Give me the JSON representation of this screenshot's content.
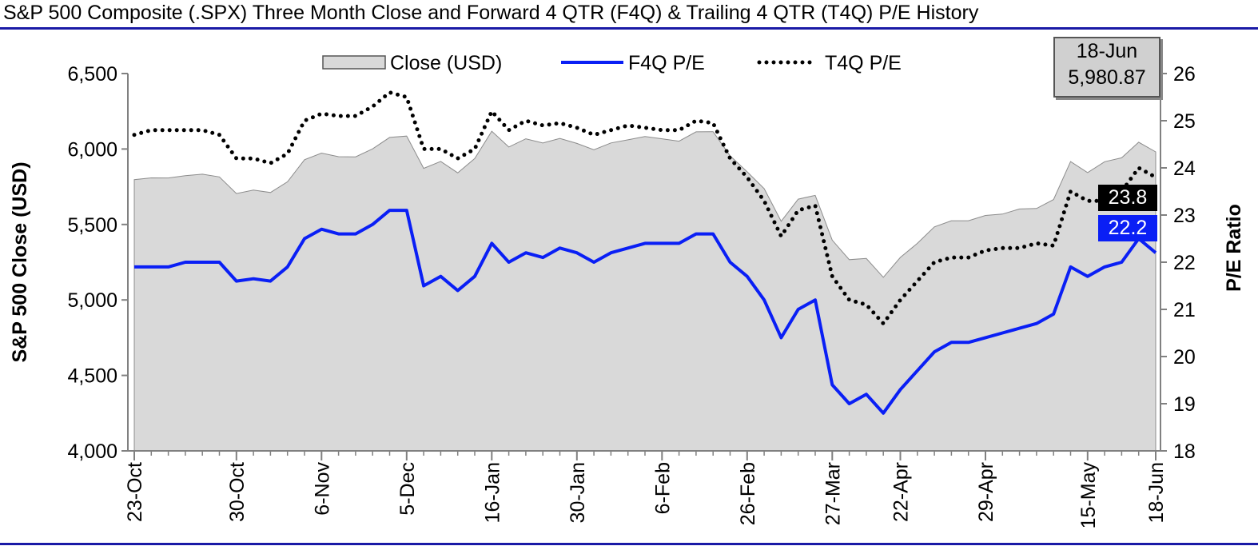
{
  "title": "S&P 500 Composite (.SPX) Three Month Close and Forward 4 QTR (F4Q) & Trailing 4 QTR (T4Q) P/E History",
  "callout": {
    "date": "18-Jun",
    "value": "5,980.87"
  },
  "last_labels": {
    "t4q": "23.8",
    "f4q": "22.2"
  },
  "colors": {
    "area_fill": "#d9d9d9",
    "f4q": "#0a1ff5",
    "t4q": "#000000",
    "t4q_label_bg": "#000000",
    "f4q_label_bg": "#0a1ff5"
  },
  "chart_data": {
    "type": "line",
    "title": "S&P 500 Composite (.SPX) Three Month Close and Forward 4 QTR (F4Q) & Trailing 4 QTR (T4Q) P/E History",
    "ylabel_left": "S&P 500 Close (USD)",
    "ylabel_right": "P/E Ratio",
    "ylim_left": [
      4000,
      6500
    ],
    "ylim_right": [
      18,
      26
    ],
    "yticks_left": [
      "4,000",
      "4,500",
      "5,000",
      "5,500",
      "6,000",
      "6,500"
    ],
    "yticks_right": [
      "18",
      "19",
      "20",
      "21",
      "22",
      "23",
      "24",
      "25",
      "26"
    ],
    "x_tick_labels": [
      {
        "index": 0,
        "label": "23-Oct"
      },
      {
        "index": 6,
        "label": "30-Oct"
      },
      {
        "index": 11,
        "label": "6-Nov"
      },
      {
        "index": 16,
        "label": "5-Dec"
      },
      {
        "index": 21,
        "label": "16-Jan"
      },
      {
        "index": 26,
        "label": "30-Jan"
      },
      {
        "index": 31,
        "label": "6-Feb"
      },
      {
        "index": 36,
        "label": "26-Feb"
      },
      {
        "index": 41,
        "label": "27-Mar"
      },
      {
        "index": 45,
        "label": "22-Apr"
      },
      {
        "index": 50,
        "label": "29-Apr"
      },
      {
        "index": 56,
        "label": "15-May"
      },
      {
        "index": 60,
        "label": "18-Jun"
      }
    ],
    "legend": [
      "Close (USD)",
      "F4Q P/E",
      "T4Q P/E"
    ],
    "legend_position": "top-center",
    "grid": false,
    "series": [
      {
        "name": "Close (USD)",
        "type": "area",
        "values": [
          5797,
          5809,
          5808,
          5823,
          5833,
          5815,
          5705,
          5728,
          5712,
          5783,
          5929,
          5973,
          5949,
          5948,
          6001,
          6077,
          6086,
          5872,
          5918,
          5842,
          5937,
          6118,
          6013,
          6068,
          6040,
          6070,
          6037,
          5995,
          6040,
          6061,
          6083,
          6068,
          6052,
          6114,
          6115,
          5955,
          5849,
          5738,
          5521,
          5668,
          5693,
          5396,
          5267,
          5275,
          5150,
          5282,
          5375,
          5484,
          5525,
          5525,
          5560,
          5569,
          5603,
          5606,
          5665,
          5917,
          5844,
          5916,
          5942,
          6045,
          5981
        ]
      },
      {
        "name": "F4Q P/E",
        "type": "line",
        "values": [
          21.9,
          21.9,
          21.9,
          22.0,
          22.0,
          22.0,
          21.6,
          21.65,
          21.6,
          21.9,
          22.5,
          22.7,
          22.6,
          22.6,
          22.8,
          23.1,
          23.1,
          21.5,
          21.7,
          21.4,
          21.7,
          22.4,
          22.0,
          22.2,
          22.1,
          22.3,
          22.2,
          22.0,
          22.2,
          22.3,
          22.4,
          22.4,
          22.4,
          22.6,
          22.6,
          22.0,
          21.7,
          21.2,
          20.4,
          21.0,
          21.2,
          19.4,
          19.0,
          19.2,
          18.8,
          19.3,
          19.7,
          20.1,
          20.3,
          20.3,
          20.4,
          20.5,
          20.6,
          20.7,
          20.9,
          21.9,
          21.7,
          21.9,
          22.0,
          22.5,
          22.2
        ]
      },
      {
        "name": "T4Q P/E",
        "type": "line",
        "values": [
          24.7,
          24.8,
          24.8,
          24.8,
          24.8,
          24.7,
          24.2,
          24.2,
          24.1,
          24.3,
          25.0,
          25.15,
          25.1,
          25.1,
          25.3,
          25.6,
          25.5,
          24.4,
          24.4,
          24.2,
          24.4,
          25.2,
          24.8,
          25.0,
          24.9,
          24.95,
          24.85,
          24.7,
          24.8,
          24.9,
          24.85,
          24.8,
          24.8,
          25.0,
          24.95,
          24.2,
          23.8,
          23.3,
          22.55,
          23.1,
          23.2,
          21.7,
          21.2,
          21.1,
          20.7,
          21.2,
          21.6,
          22.0,
          22.1,
          22.1,
          22.25,
          22.3,
          22.3,
          22.4,
          22.35,
          23.5,
          23.3,
          23.3,
          23.5,
          24.0,
          23.8
        ]
      }
    ]
  }
}
